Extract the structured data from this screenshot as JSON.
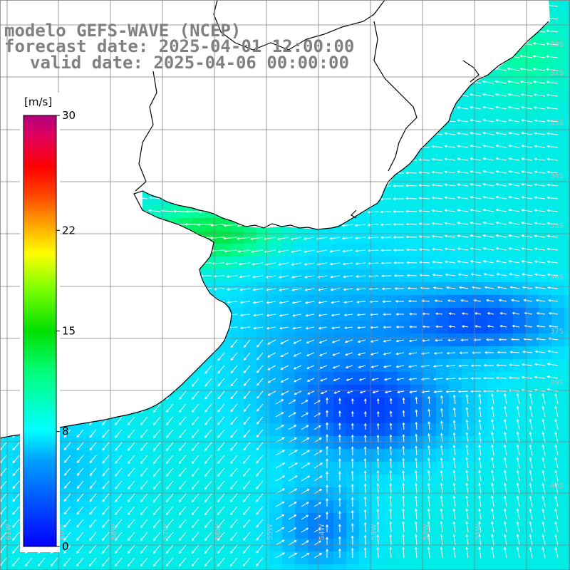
{
  "title": {
    "line1": "modelo GEFS-WAVE (NCEP)",
    "line2": "forecast date: 2025-04-01 12:00:00",
    "line3": "valid date: 2025-04-06 00:00:00"
  },
  "colorbar": {
    "unit": "[m/s]",
    "ticks": [
      "30",
      "22",
      "15",
      "8",
      "0"
    ],
    "tick_values": [
      30,
      22,
      15,
      8,
      0
    ],
    "range": [
      0,
      30
    ],
    "colors": [
      "#0000ff",
      "#00a0ff",
      "#00ffff",
      "#00ff80",
      "#00e000",
      "#80ff00",
      "#ffff00",
      "#ffa000",
      "#ff4000",
      "#ff0000",
      "#e0005a",
      "#b40080"
    ]
  },
  "map": {
    "lat_labels": [
      "28S",
      "31S",
      "33S",
      "34S",
      "35S",
      "36S",
      "37S",
      "39S",
      "40S"
    ],
    "lon_labels": [
      "61W",
      "60W",
      "58W",
      "57W",
      "56W",
      "55W",
      "54W",
      "53W",
      "52W",
      "51W"
    ],
    "land_color": "#ffffff",
    "coast_color": "#000000",
    "grid_color": "#808080",
    "arrow_color": "#ffffff"
  }
}
